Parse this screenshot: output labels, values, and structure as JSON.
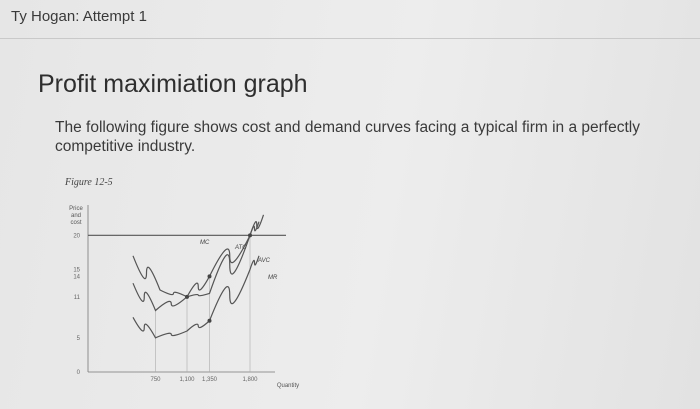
{
  "header": {
    "attempt_title": "Ty Hogan: Attempt 1"
  },
  "question": {
    "title": "Profit maximiation graph",
    "description": "The following figure shows cost and demand curves facing a typical firm in a perfectly competitive industry."
  },
  "figure": {
    "caption": "Figure 12-5",
    "ylabel_lines": [
      "Price",
      "and",
      "cost"
    ],
    "xlabel": "Quantity",
    "chart_data": {
      "type": "line",
      "xlabel": "Quantity",
      "ylabel": "Price and cost",
      "x_ticks": [
        "750",
        "1,100",
        "1,350",
        "1,800"
      ],
      "y_ticks": [
        "20",
        "15",
        "14",
        "11",
        "5",
        "0"
      ],
      "xlim": [
        0,
        2200
      ],
      "ylim": [
        0,
        24
      ],
      "series": [
        {
          "name": "MC",
          "points": [
            [
              500,
              13
            ],
            [
              750,
              9
            ],
            [
              1100,
              11
            ],
            [
              1350,
              14
            ],
            [
              1800,
              20
            ],
            [
              1950,
              23
            ]
          ]
        },
        {
          "name": "ATC",
          "points": [
            [
              500,
              17
            ],
            [
              800,
              12
            ],
            [
              1100,
              11
            ],
            [
              1350,
              11.5
            ],
            [
              1800,
              20
            ],
            [
              1900,
              22
            ]
          ]
        },
        {
          "name": "AVC",
          "points": [
            [
              500,
              8
            ],
            [
              750,
              5
            ],
            [
              1100,
              6
            ],
            [
              1350,
              7.5
            ],
            [
              1800,
              15
            ],
            [
              1900,
              17
            ]
          ]
        },
        {
          "name": "MR",
          "points": [
            [
              0,
              20
            ],
            [
              2200,
              20
            ]
          ]
        }
      ]
    }
  }
}
